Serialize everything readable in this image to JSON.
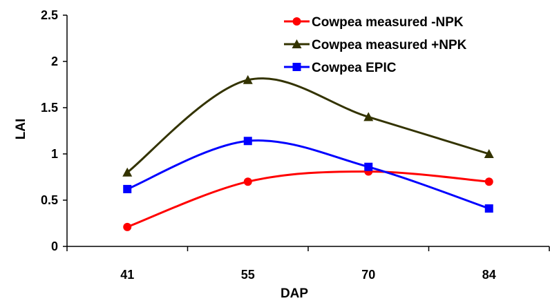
{
  "chart_data": {
    "type": "line",
    "xlabel": "DAP",
    "ylabel": "LAI",
    "categories": [
      "41",
      "55",
      "70",
      "84"
    ],
    "ylim": [
      0,
      2.5
    ],
    "yticks": [
      "0",
      "0.5",
      "1",
      "1.5",
      "2",
      "2.5"
    ],
    "grid": false,
    "legend_position": "top-right",
    "series": [
      {
        "name": "Cowpea measured -NPK",
        "values": [
          0.21,
          0.7,
          0.81,
          0.7
        ],
        "color": "#ff0000",
        "marker": "circle"
      },
      {
        "name": "Cowpea measured +NPK",
        "values": [
          0.8,
          1.8,
          1.4,
          1.0
        ],
        "color": "#333300",
        "marker": "triangle"
      },
      {
        "name": "Cowpea EPIC",
        "values": [
          0.62,
          1.14,
          0.86,
          0.41
        ],
        "color": "#0000ff",
        "marker": "square"
      }
    ]
  }
}
